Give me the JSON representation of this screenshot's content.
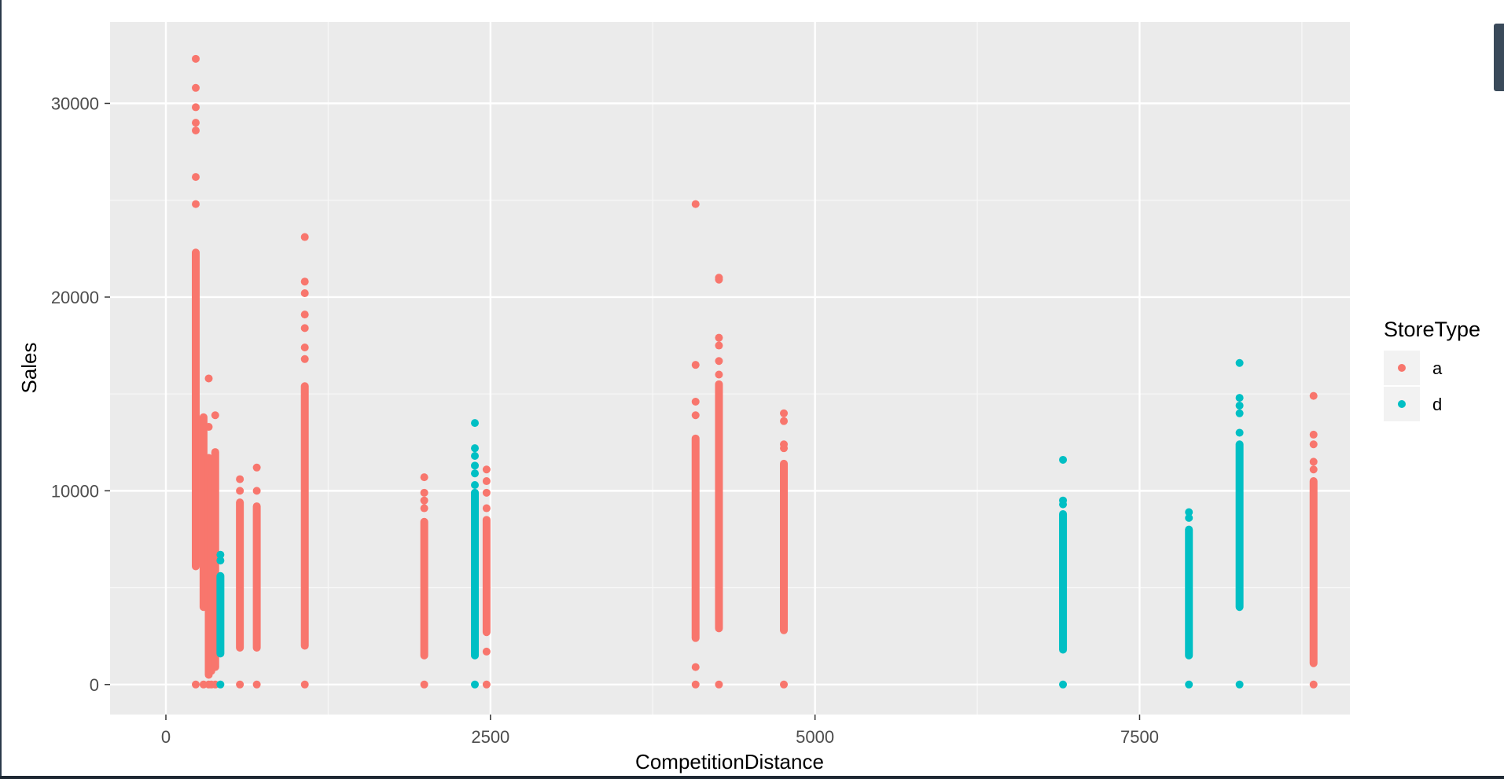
{
  "chart_data": {
    "type": "scatter",
    "title": "",
    "xlabel": "CompetitionDistance",
    "ylabel": "Sales",
    "xlim": [
      -430,
      9120
    ],
    "ylim": [
      -1550,
      34200
    ],
    "x_ticks": [
      0,
      2500,
      5000,
      7500
    ],
    "x_tick_labels": [
      "0",
      "2500",
      "5000",
      "7500"
    ],
    "y_ticks": [
      0,
      10000,
      20000,
      30000
    ],
    "y_tick_labels": [
      "0",
      "10000",
      "20000",
      "30000"
    ],
    "grid": true,
    "panel_background": "#ebebeb",
    "legend": {
      "title": "StoreType",
      "placement": "right"
    },
    "series": [
      {
        "name": "a",
        "color": "#F8766D",
        "groups": [
          {
            "x": 230,
            "zero": true,
            "min": 6100,
            "max": 22300,
            "outliers": [
              24800,
              26200,
              28600,
              29000,
              29800,
              30800,
              32300
            ]
          },
          {
            "x": 290,
            "zero": true,
            "min": 4000,
            "max": 13800,
            "outliers": []
          },
          {
            "x": 330,
            "zero": true,
            "min": 500,
            "max": 11700,
            "outliers": [
              13300,
              15800
            ]
          },
          {
            "x": 350,
            "zero": true,
            "min": 700,
            "max": 10700,
            "outliers": []
          },
          {
            "x": 380,
            "zero": true,
            "min": 900,
            "max": 12000,
            "outliers": [
              13900
            ]
          },
          {
            "x": 570,
            "zero": true,
            "min": 1900,
            "max": 9400,
            "outliers": [
              10000,
              10600
            ]
          },
          {
            "x": 700,
            "zero": true,
            "min": 1900,
            "max": 9200,
            "outliers": [
              10000,
              11200
            ]
          },
          {
            "x": 1070,
            "zero": true,
            "min": 2000,
            "max": 15400,
            "outliers": [
              16800,
              17400,
              18400,
              19100,
              20200,
              20800,
              23100
            ]
          },
          {
            "x": 1990,
            "zero": true,
            "min": 1500,
            "max": 8400,
            "outliers": [
              9100,
              9500,
              9900,
              10700
            ]
          },
          {
            "x": 2470,
            "zero": true,
            "min": 2700,
            "max": 8500,
            "outliers": [
              1700,
              9100,
              9900,
              10500,
              11100
            ]
          },
          {
            "x": 4080,
            "zero": true,
            "min": 2400,
            "max": 12700,
            "outliers": [
              900,
              13900,
              14600,
              16500,
              24800
            ]
          },
          {
            "x": 4260,
            "zero": true,
            "min": 2900,
            "max": 15500,
            "outliers": [
              16000,
              16700,
              17500,
              17900,
              20900,
              21000
            ]
          },
          {
            "x": 4760,
            "zero": true,
            "min": 2800,
            "max": 11400,
            "outliers": [
              12200,
              12400,
              13600,
              14000
            ]
          },
          {
            "x": 8840,
            "zero": true,
            "min": 1100,
            "max": 10500,
            "outliers": [
              11100,
              11500,
              12400,
              12900,
              14900
            ]
          }
        ]
      },
      {
        "name": "d",
        "color": "#00BFC4",
        "groups": [
          {
            "x": 420,
            "zero": true,
            "min": 1600,
            "max": 5600,
            "outliers": [
              6400,
              6700
            ]
          },
          {
            "x": 2380,
            "zero": true,
            "min": 1500,
            "max": 9900,
            "outliers": [
              10300,
              10900,
              11300,
              11800,
              12200,
              13500
            ]
          },
          {
            "x": 6910,
            "zero": true,
            "min": 1800,
            "max": 8800,
            "outliers": [
              9300,
              9500,
              11600
            ]
          },
          {
            "x": 7880,
            "zero": true,
            "min": 1500,
            "max": 8000,
            "outliers": [
              8600,
              8900
            ]
          },
          {
            "x": 8270,
            "zero": true,
            "min": 4000,
            "max": 12400,
            "outliers": [
              13000,
              14000,
              14400,
              14800,
              16600
            ]
          }
        ]
      }
    ]
  }
}
